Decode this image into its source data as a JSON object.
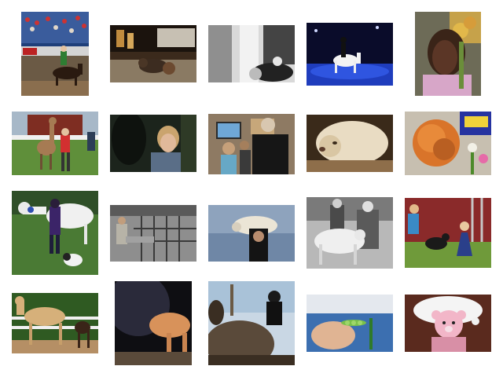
{
  "gallery": {
    "items": [
      {
        "subject": "equestrian-show-arena"
      },
      {
        "subject": "teddy-bear-on-floor"
      },
      {
        "subject": "bw-hands-with-doll"
      },
      {
        "subject": "rider-on-white-horse-blue-arena"
      },
      {
        "subject": "girl-with-flowers"
      },
      {
        "subject": "alpaca-with-handler"
      },
      {
        "subject": "woman-laughing-with-horse"
      },
      {
        "subject": "people-watching-screen"
      },
      {
        "subject": "sleeping-dog"
      },
      {
        "subject": "orange-yarn-toy"
      },
      {
        "subject": "handler-with-white-horse-and-dog"
      },
      {
        "subject": "livestock-pen"
      },
      {
        "subject": "man-carrying-sheep"
      },
      {
        "subject": "bw-men-with-sheep"
      },
      {
        "subject": "children-with-goats"
      },
      {
        "subject": "palomino-horse-with-foal"
      },
      {
        "subject": "foal-nursing"
      },
      {
        "subject": "rider-on-grey-horse"
      },
      {
        "subject": "hand-holding-pea-pod"
      },
      {
        "subject": "pink-teddy-bear-in-hat"
      }
    ]
  }
}
